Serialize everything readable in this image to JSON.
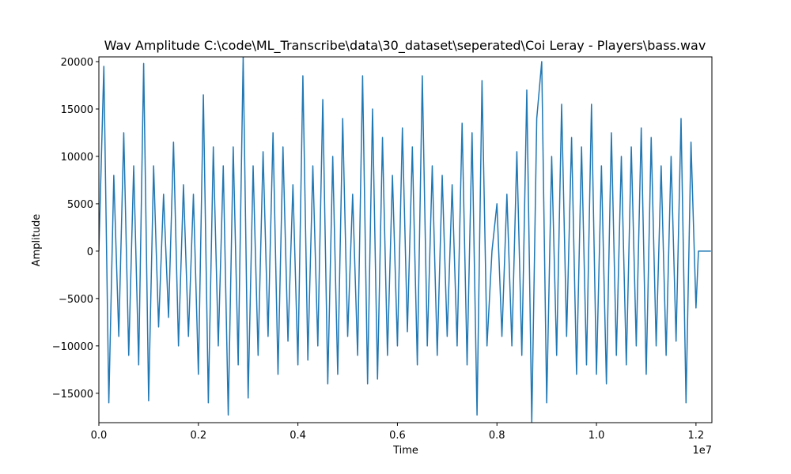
{
  "chart_data": {
    "type": "line",
    "title": "Wav Amplitude C:\\code\\ML_Transcribe\\data\\30_dataset\\seperated\\Coi Leray - Players\\bass.wav",
    "xlabel": "Time",
    "ylabel": "Amplitude",
    "x_offset_label": "1e7",
    "color": "#1f77b4",
    "xlim": [
      0,
      12320000
    ],
    "ylim": [
      -18100,
      20500
    ],
    "xticks": [
      {
        "value": 0,
        "label": "0.0"
      },
      {
        "value": 2000000,
        "label": "0.2"
      },
      {
        "value": 4000000,
        "label": "0.4"
      },
      {
        "value": 6000000,
        "label": "0.6"
      },
      {
        "value": 8000000,
        "label": "0.8"
      },
      {
        "value": 10000000,
        "label": "1.0"
      },
      {
        "value": 12000000,
        "label": "1.2"
      }
    ],
    "yticks": [
      {
        "value": -15000,
        "label": "−15000"
      },
      {
        "value": -10000,
        "label": "−10000"
      },
      {
        "value": -5000,
        "label": "−5000"
      },
      0,
      5000,
      10000,
      15000,
      20000
    ],
    "x": [
      0,
      100000,
      200000,
      300000,
      400000,
      500000,
      600000,
      700000,
      800000,
      900000,
      1000000,
      1100000,
      1200000,
      1300000,
      1400000,
      1500000,
      1600000,
      1700000,
      1800000,
      1900000,
      2000000,
      2100000,
      2200000,
      2300000,
      2400000,
      2500000,
      2600000,
      2700000,
      2800000,
      2900000,
      3000000,
      3100000,
      3200000,
      3300000,
      3400000,
      3500000,
      3600000,
      3700000,
      3800000,
      3900000,
      4000000,
      4100000,
      4200000,
      4300000,
      4400000,
      4500000,
      4600000,
      4700000,
      4800000,
      4900000,
      5000000,
      5100000,
      5200000,
      5300000,
      5400000,
      5500000,
      5600000,
      5700000,
      5800000,
      5900000,
      6000000,
      6100000,
      6200000,
      6300000,
      6400000,
      6500000,
      6600000,
      6700000,
      6800000,
      6900000,
      7000000,
      7100000,
      7200000,
      7300000,
      7400000,
      7500000,
      7600000,
      7700000,
      7800000,
      7900000,
      8000000,
      8100000,
      8200000,
      8300000,
      8400000,
      8500000,
      8600000,
      8700000,
      8800000,
      8900000,
      9000000,
      9100000,
      9200000,
      9300000,
      9400000,
      9500000,
      9600000,
      9700000,
      9800000,
      9900000,
      10000000,
      10100000,
      10200000,
      10300000,
      10400000,
      10500000,
      10600000,
      10700000,
      10800000,
      10900000,
      11000000,
      11100000,
      11200000,
      11300000,
      11400000,
      11500000,
      11600000,
      11700000,
      11800000,
      11900000,
      12000000,
      12050000,
      12300000
    ],
    "values": [
      0,
      19500,
      -16000,
      8000,
      -9000,
      12500,
      -11000,
      9000,
      -12000,
      19800,
      -15800,
      9000,
      -8000,
      6000,
      -7000,
      11500,
      -10000,
      7000,
      -9000,
      6000,
      -13000,
      16500,
      -16000,
      11000,
      -10000,
      9000,
      -17300,
      11000,
      -12000,
      20500,
      -15500,
      9000,
      -11000,
      10500,
      -9000,
      12500,
      -13000,
      11000,
      -9500,
      7000,
      -12000,
      18500,
      -11500,
      9000,
      -10000,
      16000,
      -14000,
      10000,
      -13000,
      14000,
      -9000,
      6000,
      -11000,
      18500,
      -14000,
      15000,
      -13500,
      12000,
      -11000,
      8000,
      -10000,
      13000,
      -8500,
      11000,
      -12000,
      18500,
      -10000,
      9000,
      -11000,
      8000,
      -9000,
      7000,
      -10000,
      13500,
      -12000,
      12500,
      -17300,
      18000,
      -10000,
      0,
      5000,
      -9000,
      6000,
      -10000,
      10500,
      -11000,
      17000,
      -18100,
      14000,
      20000,
      -16000,
      10000,
      -11000,
      15500,
      -9000,
      12000,
      -13000,
      11000,
      -12000,
      15500,
      -13000,
      9000,
      -14000,
      12500,
      -11000,
      10000,
      -12000,
      11000,
      -10000,
      13000,
      -13000,
      12000,
      -10000,
      9000,
      -11000,
      10000,
      -9500,
      14000,
      -16000,
      11500,
      -6000,
      0,
      0
    ]
  }
}
